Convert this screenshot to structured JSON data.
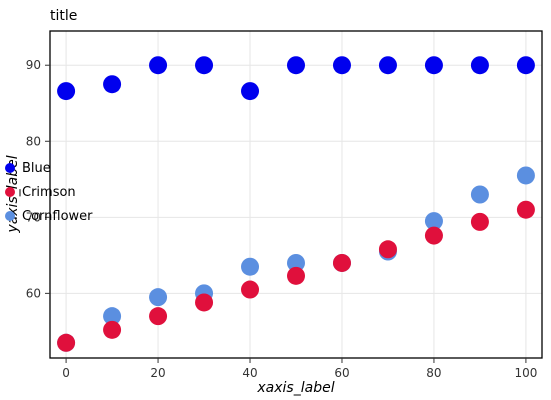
{
  "chart_data": {
    "type": "scatter",
    "title": "title",
    "xlabel": "xaxis_label",
    "ylabel": "yaxis_label",
    "xlim": [
      -3.5,
      103.5
    ],
    "ylim": [
      51.5,
      94.5
    ],
    "xticks": [
      0,
      20,
      40,
      60,
      80,
      100
    ],
    "yticks": [
      60,
      70,
      80,
      90
    ],
    "grid": true,
    "legend_position": "left",
    "series": [
      {
        "name": "Blue",
        "color": "#0000ee",
        "x": [
          0,
          10,
          20,
          30,
          40,
          50,
          60,
          70,
          80,
          90,
          100
        ],
        "y": [
          86.6,
          87.5,
          90.0,
          90.0,
          86.6,
          90.0,
          90.0,
          90.0,
          90.0,
          90.0,
          90.0
        ]
      },
      {
        "name": "Crimson",
        "color": "#e0103c",
        "x": [
          0,
          10,
          20,
          30,
          40,
          50,
          60,
          70,
          80,
          90,
          100
        ],
        "y": [
          53.5,
          55.2,
          57.0,
          58.8,
          60.5,
          62.3,
          64.0,
          65.8,
          67.6,
          69.4,
          71.0
        ]
      },
      {
        "name": "Cornflower",
        "color": "#5b8fe0",
        "x": [
          0,
          10,
          20,
          30,
          40,
          50,
          60,
          70,
          80,
          90,
          100
        ],
        "y": [
          53.5,
          57.0,
          59.5,
          60.0,
          63.5,
          64.0,
          64.0,
          65.5,
          69.5,
          73.0,
          75.5
        ]
      }
    ]
  }
}
